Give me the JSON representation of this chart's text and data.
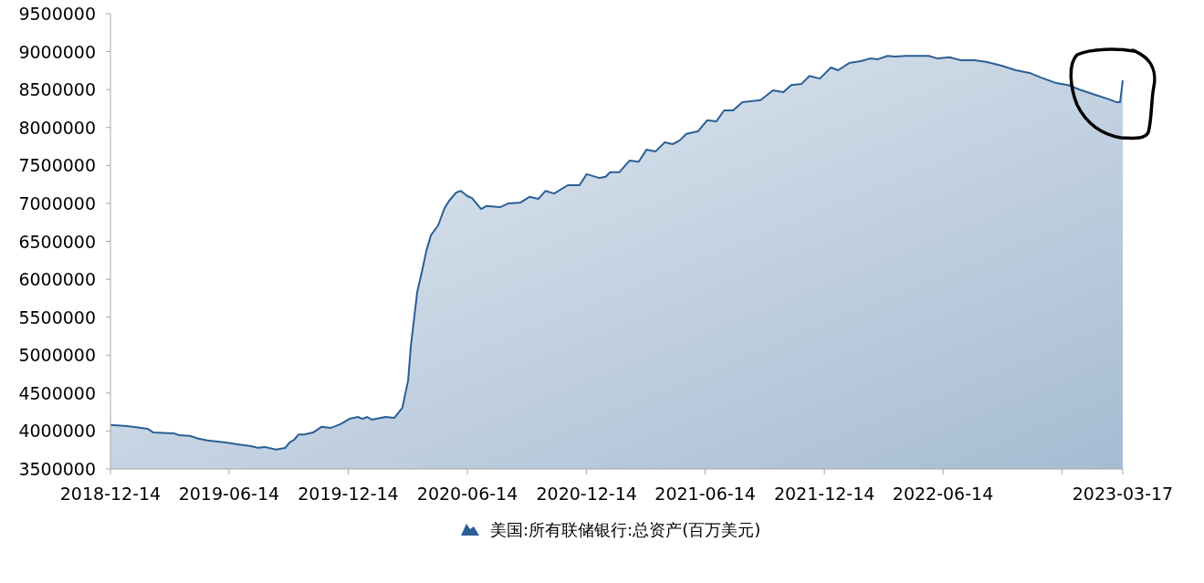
{
  "chart_data": {
    "type": "area",
    "legend": "bottom",
    "grid": false,
    "xlim": [
      "2018-12-14",
      "2023-03-17"
    ],
    "xticks": [
      {
        "value": "2018-12-14",
        "label": "2018-12-14"
      },
      {
        "value": "2019-06-14",
        "label": "2019-06-14"
      },
      {
        "value": "2019-12-14",
        "label": "2019-12-14"
      },
      {
        "value": "2020-06-14",
        "label": "2020-06-14"
      },
      {
        "value": "2020-12-14",
        "label": "2020-12-14"
      },
      {
        "value": "2021-06-14",
        "label": "2021-06-14"
      },
      {
        "value": "2021-12-14",
        "label": "2021-12-14"
      },
      {
        "value": "2022-06-14",
        "label": "2022-06-14"
      },
      {
        "value": "2022-12-14",
        "label": null
      },
      {
        "value": "2023-03-17",
        "label": "2023-03-17"
      }
    ],
    "ylim": [
      3500000,
      9500000
    ],
    "yticks": [
      3500000,
      4000000,
      4500000,
      5000000,
      5500000,
      6000000,
      6500000,
      7000000,
      7500000,
      8000000,
      8500000,
      9000000,
      9500000
    ],
    "x": [
      "2018-12-14",
      "2019-01-09",
      "2019-02-09",
      "2019-02-18",
      "2019-03-21",
      "2019-03-30",
      "2019-04-15",
      "2019-04-28",
      "2019-05-12",
      "2019-06-09",
      "2019-06-27",
      "2019-07-18",
      "2019-07-28",
      "2019-08-08",
      "2019-08-25",
      "2019-09-08",
      "2019-09-15",
      "2019-09-22",
      "2019-09-29",
      "2019-10-07",
      "2019-10-21",
      "2019-11-03",
      "2019-11-17",
      "2019-12-02",
      "2019-12-16",
      "2019-12-29",
      "2020-01-05",
      "2020-01-12",
      "2020-01-19",
      "2020-02-09",
      "2020-02-23",
      "2020-03-06",
      "2020-03-15",
      "2020-03-19",
      "2020-03-29",
      "2020-04-05",
      "2020-04-12",
      "2020-04-19",
      "2020-04-30",
      "2020-05-10",
      "2020-05-17",
      "2020-05-28",
      "2020-06-04",
      "2020-06-14",
      "2020-06-21",
      "2020-07-05",
      "2020-07-13",
      "2020-08-03",
      "2020-08-16",
      "2020-09-03",
      "2020-09-17",
      "2020-10-01",
      "2020-10-12",
      "2020-10-25",
      "2020-11-15",
      "2020-12-03",
      "2020-12-14",
      "2021-01-03",
      "2021-01-12",
      "2021-01-19",
      "2021-02-02",
      "2021-02-18",
      "2021-03-04",
      "2021-03-16",
      "2021-03-30",
      "2021-04-13",
      "2021-04-25",
      "2021-05-06",
      "2021-05-16",
      "2021-06-03",
      "2021-06-17",
      "2021-07-01",
      "2021-07-13",
      "2021-07-27",
      "2021-08-10",
      "2021-09-07",
      "2021-09-26",
      "2021-10-12",
      "2021-10-24",
      "2021-11-09",
      "2021-11-21",
      "2021-12-07",
      "2021-12-24",
      "2022-01-04",
      "2022-01-21",
      "2022-02-08",
      "2022-02-22",
      "2022-03-06",
      "2022-03-21",
      "2022-04-01",
      "2022-04-18",
      "2022-05-23",
      "2022-06-06",
      "2022-06-24",
      "2022-07-12",
      "2022-08-01",
      "2022-08-19",
      "2022-09-12",
      "2022-10-04",
      "2022-10-25",
      "2022-11-11",
      "2022-12-05",
      "2022-12-23",
      "2023-01-10",
      "2023-02-03",
      "2023-02-21",
      "2023-03-07",
      "2023-03-13",
      "2023-03-17"
    ],
    "series": [
      {
        "name": "美国:所有联储银行:总资产(百万美元)",
        "color": "#2b5f95",
        "values": [
          4080000,
          4065000,
          4030000,
          3980000,
          3970000,
          3945000,
          3935000,
          3900000,
          3875000,
          3850000,
          3825000,
          3800000,
          3780000,
          3790000,
          3755000,
          3775000,
          3850000,
          3885000,
          3955000,
          3955000,
          3980000,
          4055000,
          4040000,
          4090000,
          4160000,
          4185000,
          4160000,
          4185000,
          4150000,
          4185000,
          4175000,
          4305000,
          4665000,
          5110000,
          5835000,
          6095000,
          6375000,
          6580000,
          6710000,
          6940000,
          7035000,
          7145000,
          7165000,
          7095000,
          7070000,
          6925000,
          6965000,
          6950000,
          7000000,
          7010000,
          7085000,
          7060000,
          7165000,
          7130000,
          7240000,
          7240000,
          7385000,
          7335000,
          7350000,
          7410000,
          7410000,
          7565000,
          7550000,
          7710000,
          7685000,
          7805000,
          7780000,
          7830000,
          7915000,
          7950000,
          8095000,
          8080000,
          8225000,
          8225000,
          8335000,
          8360000,
          8490000,
          8465000,
          8560000,
          8575000,
          8680000,
          8645000,
          8790000,
          8755000,
          8850000,
          8875000,
          8910000,
          8900000,
          8945000,
          8935000,
          8945000,
          8945000,
          8910000,
          8925000,
          8885000,
          8885000,
          8865000,
          8815000,
          8755000,
          8720000,
          8660000,
          8585000,
          8560000,
          8500000,
          8430000,
          8380000,
          8335000,
          8335000,
          8620000
        ]
      }
    ]
  }
}
